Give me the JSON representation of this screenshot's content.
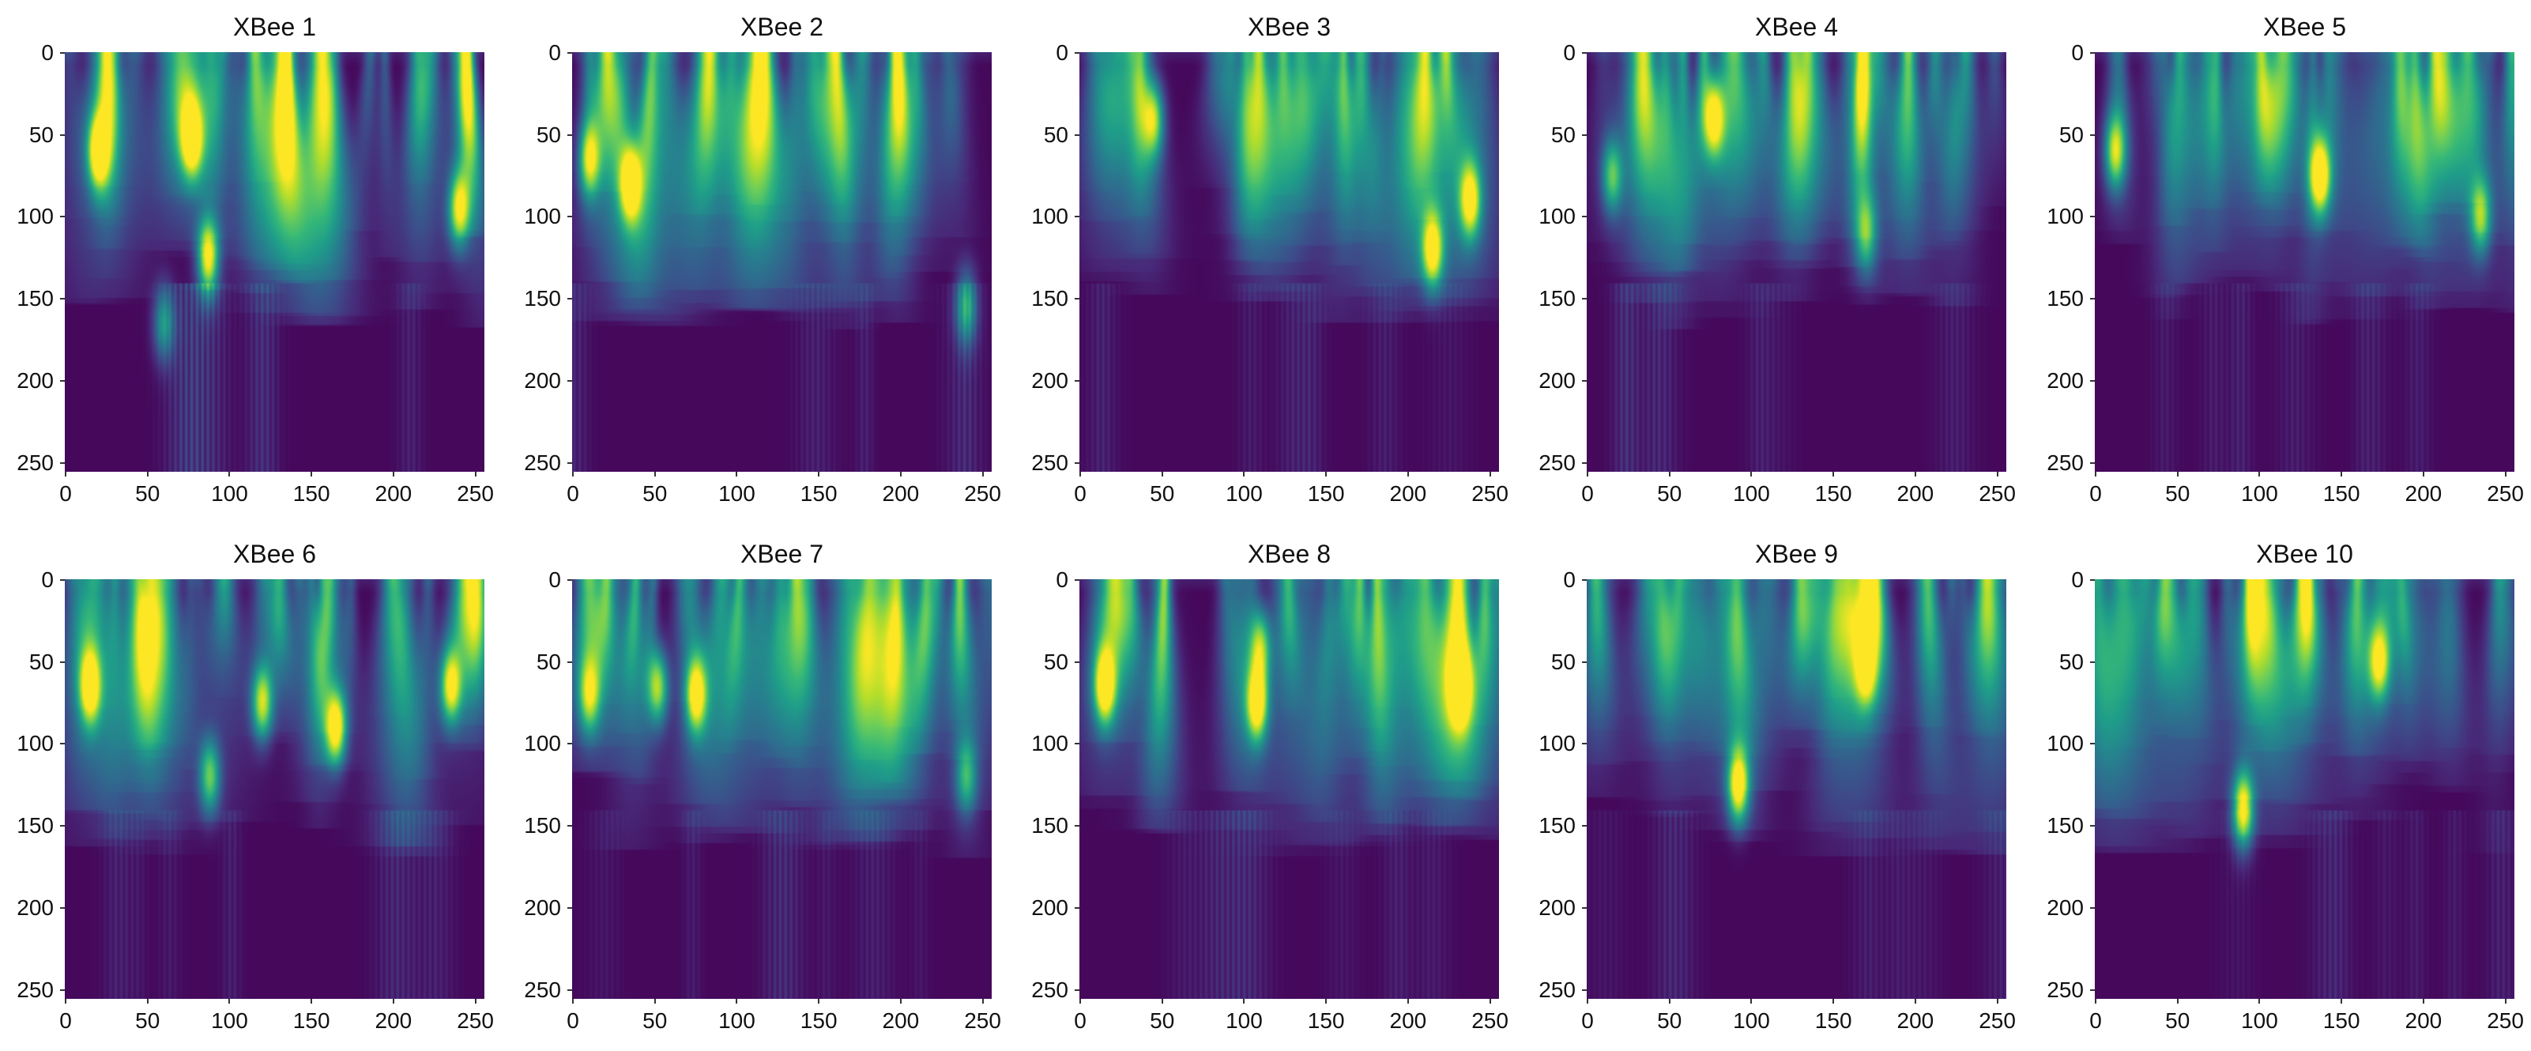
{
  "chart_data": {
    "type": "heatmap",
    "colormap": "viridis",
    "colormap_stops": [
      "#440154",
      "#482878",
      "#3e4a89",
      "#31688e",
      "#26828e",
      "#1f9e89",
      "#35b779",
      "#6ece58",
      "#b5de2b",
      "#fde725"
    ],
    "grid": false,
    "layout": "2 rows x 5 columns",
    "matrix_shape": [
      256,
      256
    ],
    "xlim": [
      0,
      255
    ],
    "ylim": [
      255,
      0
    ],
    "x_ticks": [
      "0",
      "50",
      "100",
      "150",
      "200",
      "250"
    ],
    "y_ticks": [
      "0",
      "50",
      "100",
      "150",
      "200",
      "250"
    ],
    "panels": [
      {
        "title": "XBee 1",
        "hotspots": [
          {
            "x": 87,
            "y": 125,
            "v": 0.95
          },
          {
            "x": 20,
            "y": 60,
            "v": 0.9
          },
          {
            "x": 77,
            "y": 52,
            "v": 0.85
          },
          {
            "x": 240,
            "y": 95,
            "v": 0.8
          },
          {
            "x": 60,
            "y": 165,
            "v": 0.5
          }
        ]
      },
      {
        "title": "XBee 2",
        "hotspots": [
          {
            "x": 35,
            "y": 80,
            "v": 0.85
          },
          {
            "x": 10,
            "y": 65,
            "v": 0.7
          },
          {
            "x": 240,
            "y": 155,
            "v": 0.55
          }
        ]
      },
      {
        "title": "XBee 3",
        "hotspots": [
          {
            "x": 215,
            "y": 120,
            "v": 0.85
          },
          {
            "x": 238,
            "y": 90,
            "v": 0.8
          },
          {
            "x": 45,
            "y": 40,
            "v": 0.65
          }
        ]
      },
      {
        "title": "XBee 4",
        "hotspots": [
          {
            "x": 77,
            "y": 40,
            "v": 0.75
          },
          {
            "x": 15,
            "y": 75,
            "v": 0.6
          },
          {
            "x": 170,
            "y": 110,
            "v": 0.5
          }
        ]
      },
      {
        "title": "XBee 5",
        "hotspots": [
          {
            "x": 137,
            "y": 75,
            "v": 0.95
          },
          {
            "x": 12,
            "y": 60,
            "v": 0.75
          },
          {
            "x": 235,
            "y": 100,
            "v": 0.65
          }
        ]
      },
      {
        "title": "XBee 6",
        "hotspots": [
          {
            "x": 165,
            "y": 90,
            "v": 0.95
          },
          {
            "x": 15,
            "y": 65,
            "v": 0.85
          },
          {
            "x": 120,
            "y": 75,
            "v": 0.8
          },
          {
            "x": 235,
            "y": 65,
            "v": 0.8
          },
          {
            "x": 88,
            "y": 120,
            "v": 0.65
          }
        ]
      },
      {
        "title": "XBee 7",
        "hotspots": [
          {
            "x": 75,
            "y": 70,
            "v": 0.85
          },
          {
            "x": 52,
            "y": 65,
            "v": 0.75
          },
          {
            "x": 10,
            "y": 70,
            "v": 0.6
          },
          {
            "x": 240,
            "y": 120,
            "v": 0.5
          }
        ]
      },
      {
        "title": "XBee 8",
        "hotspots": [
          {
            "x": 108,
            "y": 75,
            "v": 0.95
          },
          {
            "x": 15,
            "y": 65,
            "v": 0.9
          },
          {
            "x": 232,
            "y": 65,
            "v": 0.85
          },
          {
            "x": 110,
            "y": 40,
            "v": 0.65
          }
        ]
      },
      {
        "title": "XBee 9",
        "hotspots": [
          {
            "x": 92,
            "y": 125,
            "v": 0.95
          },
          {
            "x": 170,
            "y": 55,
            "v": 0.55
          }
        ]
      },
      {
        "title": "XBee 10",
        "hotspots": [
          {
            "x": 90,
            "y": 140,
            "v": 0.95
          },
          {
            "x": 173,
            "y": 50,
            "v": 0.7
          }
        ]
      }
    ]
  }
}
